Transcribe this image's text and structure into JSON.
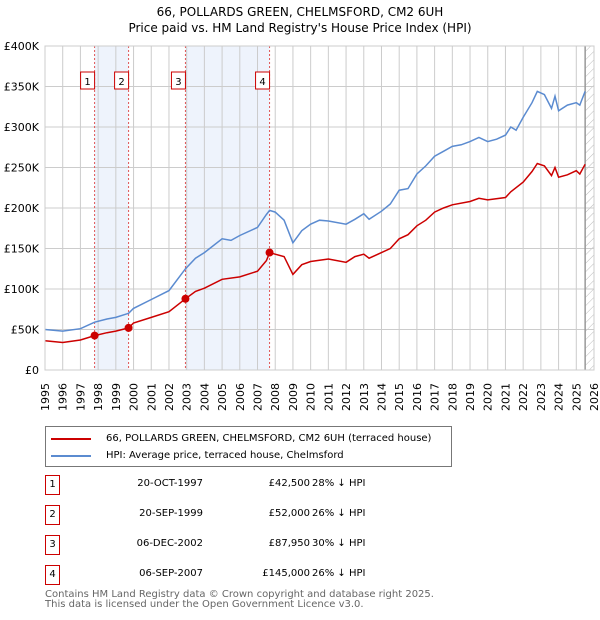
{
  "title_line1": "66, POLLARDS GREEN, CHELMSFORD, CM2 6UH",
  "title_line2": "Price paid vs. HM Land Registry's House Price Index (HPI)",
  "chart_data": {
    "type": "line",
    "title": "66, POLLARDS GREEN, CHELMSFORD, CM2 6UH — Price paid vs. HM Land Registry's House Price Index (HPI)",
    "xlim": [
      1995,
      2026
    ],
    "ylim": [
      0,
      400000
    ],
    "x_ticks": [
      "1995",
      "1996",
      "1997",
      "1998",
      "1999",
      "2000",
      "2001",
      "2002",
      "2003",
      "2004",
      "2005",
      "2006",
      "2007",
      "2008",
      "2009",
      "2010",
      "2011",
      "2012",
      "2013",
      "2014",
      "2015",
      "2016",
      "2017",
      "2018",
      "2019",
      "2020",
      "2021",
      "2022",
      "2023",
      "2024",
      "2025",
      "2026"
    ],
    "y_ticks": [
      {
        "v": 0,
        "label": "£0"
      },
      {
        "v": 50000,
        "label": "£50K"
      },
      {
        "v": 100000,
        "label": "£100K"
      },
      {
        "v": 150000,
        "label": "£150K"
      },
      {
        "v": 200000,
        "label": "£200K"
      },
      {
        "v": 250000,
        "label": "£250K"
      },
      {
        "v": 300000,
        "label": "£300K"
      },
      {
        "v": 350000,
        "label": "£350K"
      },
      {
        "v": 400000,
        "label": "£400K"
      }
    ],
    "grid": true,
    "shaded_ranges": [
      [
        1997.8,
        1999.72
      ],
      [
        2002.93,
        2007.68
      ]
    ],
    "forecast_from": 2025.5,
    "series": [
      {
        "name": "66, POLLARDS GREEN, CHELMSFORD, CM2 6UH (terraced house)",
        "color": "#cc0000",
        "x": [
          1995,
          1996,
          1997,
          1997.8,
          1998.5,
          1999,
          1999.72,
          2000,
          2001,
          2002,
          2002.93,
          2003.5,
          2004,
          2005,
          2006,
          2007,
          2007.5,
          2007.68,
          2008,
          2008.5,
          2009,
          2009.5,
          2010,
          2011,
          2012,
          2012.5,
          2013,
          2013.3,
          2014,
          2014.5,
          2015,
          2015.5,
          2016,
          2016.5,
          2017,
          2017.5,
          2018,
          2019,
          2019.5,
          2020,
          2021,
          2021.3,
          2022,
          2022.5,
          2022.8,
          2023.2,
          2023.6,
          2023.8,
          2024,
          2024.5,
          2025,
          2025.2,
          2025.5
        ],
        "y": [
          36000,
          34000,
          37000,
          42500,
          46000,
          48000,
          52000,
          58000,
          65000,
          72000,
          87950,
          97000,
          101000,
          112000,
          115000,
          122000,
          135000,
          145000,
          143000,
          140000,
          118000,
          130000,
          134000,
          137000,
          133000,
          140000,
          143000,
          138000,
          145000,
          150000,
          162000,
          167000,
          178000,
          185000,
          195000,
          200000,
          204000,
          208000,
          212000,
          210000,
          213000,
          220000,
          232000,
          245000,
          255000,
          252000,
          240000,
          250000,
          238000,
          241000,
          246000,
          242000,
          254000
        ]
      },
      {
        "name": "HPI: Average price, terraced house, Chelmsford",
        "color": "#5b8bd0",
        "x": [
          1995,
          1996,
          1997,
          1997.8,
          1998.5,
          1999,
          1999.72,
          2000,
          2001,
          2002,
          2002.93,
          2003.5,
          2004,
          2005,
          2005.5,
          2006,
          2007,
          2007.5,
          2007.68,
          2008,
          2008.5,
          2009,
          2009.5,
          2010,
          2010.5,
          2011,
          2012,
          2012.5,
          2013,
          2013.3,
          2014,
          2014.5,
          2015,
          2015.5,
          2016,
          2016.5,
          2017,
          2017.5,
          2018,
          2018.5,
          2019,
          2019.5,
          2020,
          2020.5,
          2021,
          2021.3,
          2021.6,
          2022,
          2022.5,
          2022.8,
          2023.2,
          2023.6,
          2023.8,
          2024,
          2024.5,
          2025,
          2025.2,
          2025.5
        ],
        "y": [
          50000,
          48000,
          51000,
          59000,
          63000,
          65000,
          70000,
          76000,
          87000,
          98000,
          125000,
          138000,
          145000,
          162000,
          160000,
          166000,
          176000,
          192000,
          197000,
          195000,
          185000,
          157000,
          172000,
          180000,
          185000,
          184000,
          180000,
          186000,
          193000,
          186000,
          196000,
          205000,
          222000,
          224000,
          242000,
          252000,
          264000,
          270000,
          276000,
          278000,
          282000,
          287000,
          282000,
          285000,
          290000,
          300000,
          296000,
          312000,
          330000,
          344000,
          340000,
          323000,
          338000,
          320000,
          327000,
          330000,
          327000,
          344000
        ]
      }
    ],
    "sales": [
      {
        "id": "1",
        "x": 1997.8,
        "y": 42500
      },
      {
        "id": "2",
        "x": 1999.72,
        "y": 52000
      },
      {
        "id": "3",
        "x": 2002.93,
        "y": 87950
      },
      {
        "id": "4",
        "x": 2007.68,
        "y": 145000
      }
    ]
  },
  "legend": {
    "property": "66, POLLARDS GREEN, CHELMSFORD, CM2 6UH (terraced house)",
    "hpi": "HPI: Average price, terraced house, Chelmsford"
  },
  "transactions": [
    {
      "id": "1",
      "date": "20-OCT-1997",
      "price": "£42,500",
      "hpi": "28% ↓ HPI"
    },
    {
      "id": "2",
      "date": "20-SEP-1999",
      "price": "£52,000",
      "hpi": "26% ↓ HPI"
    },
    {
      "id": "3",
      "date": "06-DEC-2002",
      "price": "£87,950",
      "hpi": "30% ↓ HPI"
    },
    {
      "id": "4",
      "date": "06-SEP-2007",
      "price": "£145,000",
      "hpi": "26% ↓ HPI"
    }
  ],
  "footer_line1": "Contains HM Land Registry data © Crown copyright and database right 2025.",
  "footer_line2": "This data is licensed under the Open Government Licence v3.0."
}
